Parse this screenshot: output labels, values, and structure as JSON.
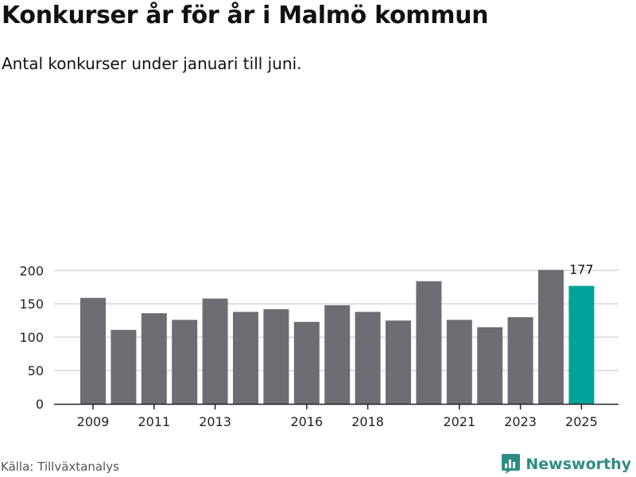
{
  "header": {
    "title": "Konkurser år för år i Malmö kommun",
    "subtitle": "Antal konkurser under januari till juni."
  },
  "footer": {
    "source": "Källa: Tillväxtanalys",
    "brand": "Newsworthy"
  },
  "colors": {
    "bar": "#6e6d73",
    "highlight": "#00a39a",
    "grid": "#d6d6d6",
    "axis": "#222222",
    "brand": "#2e8c82"
  },
  "icons": {
    "brand_logo": "newsworthy-chart-icon"
  },
  "chart_data": {
    "type": "bar",
    "categories": [
      "2009",
      "2010",
      "2011",
      "2012",
      "2013",
      "2014",
      "2015",
      "2016",
      "2017",
      "2018",
      "2019",
      "2020",
      "2021",
      "2022",
      "2023",
      "2024",
      "2025"
    ],
    "values": [
      159,
      111,
      136,
      126,
      158,
      138,
      142,
      123,
      148,
      138,
      125,
      184,
      126,
      115,
      130,
      201,
      177
    ],
    "highlight_category": "2025",
    "data_labels": [
      {
        "category": "2025",
        "text": "177"
      }
    ],
    "x_tick_labels": [
      "2009",
      "2011",
      "2013",
      "2016",
      "2018",
      "2021",
      "2023",
      "2025"
    ],
    "y_ticks": [
      0,
      50,
      100,
      150,
      200
    ],
    "ylim": [
      0,
      215
    ],
    "grid": "horizontal"
  }
}
